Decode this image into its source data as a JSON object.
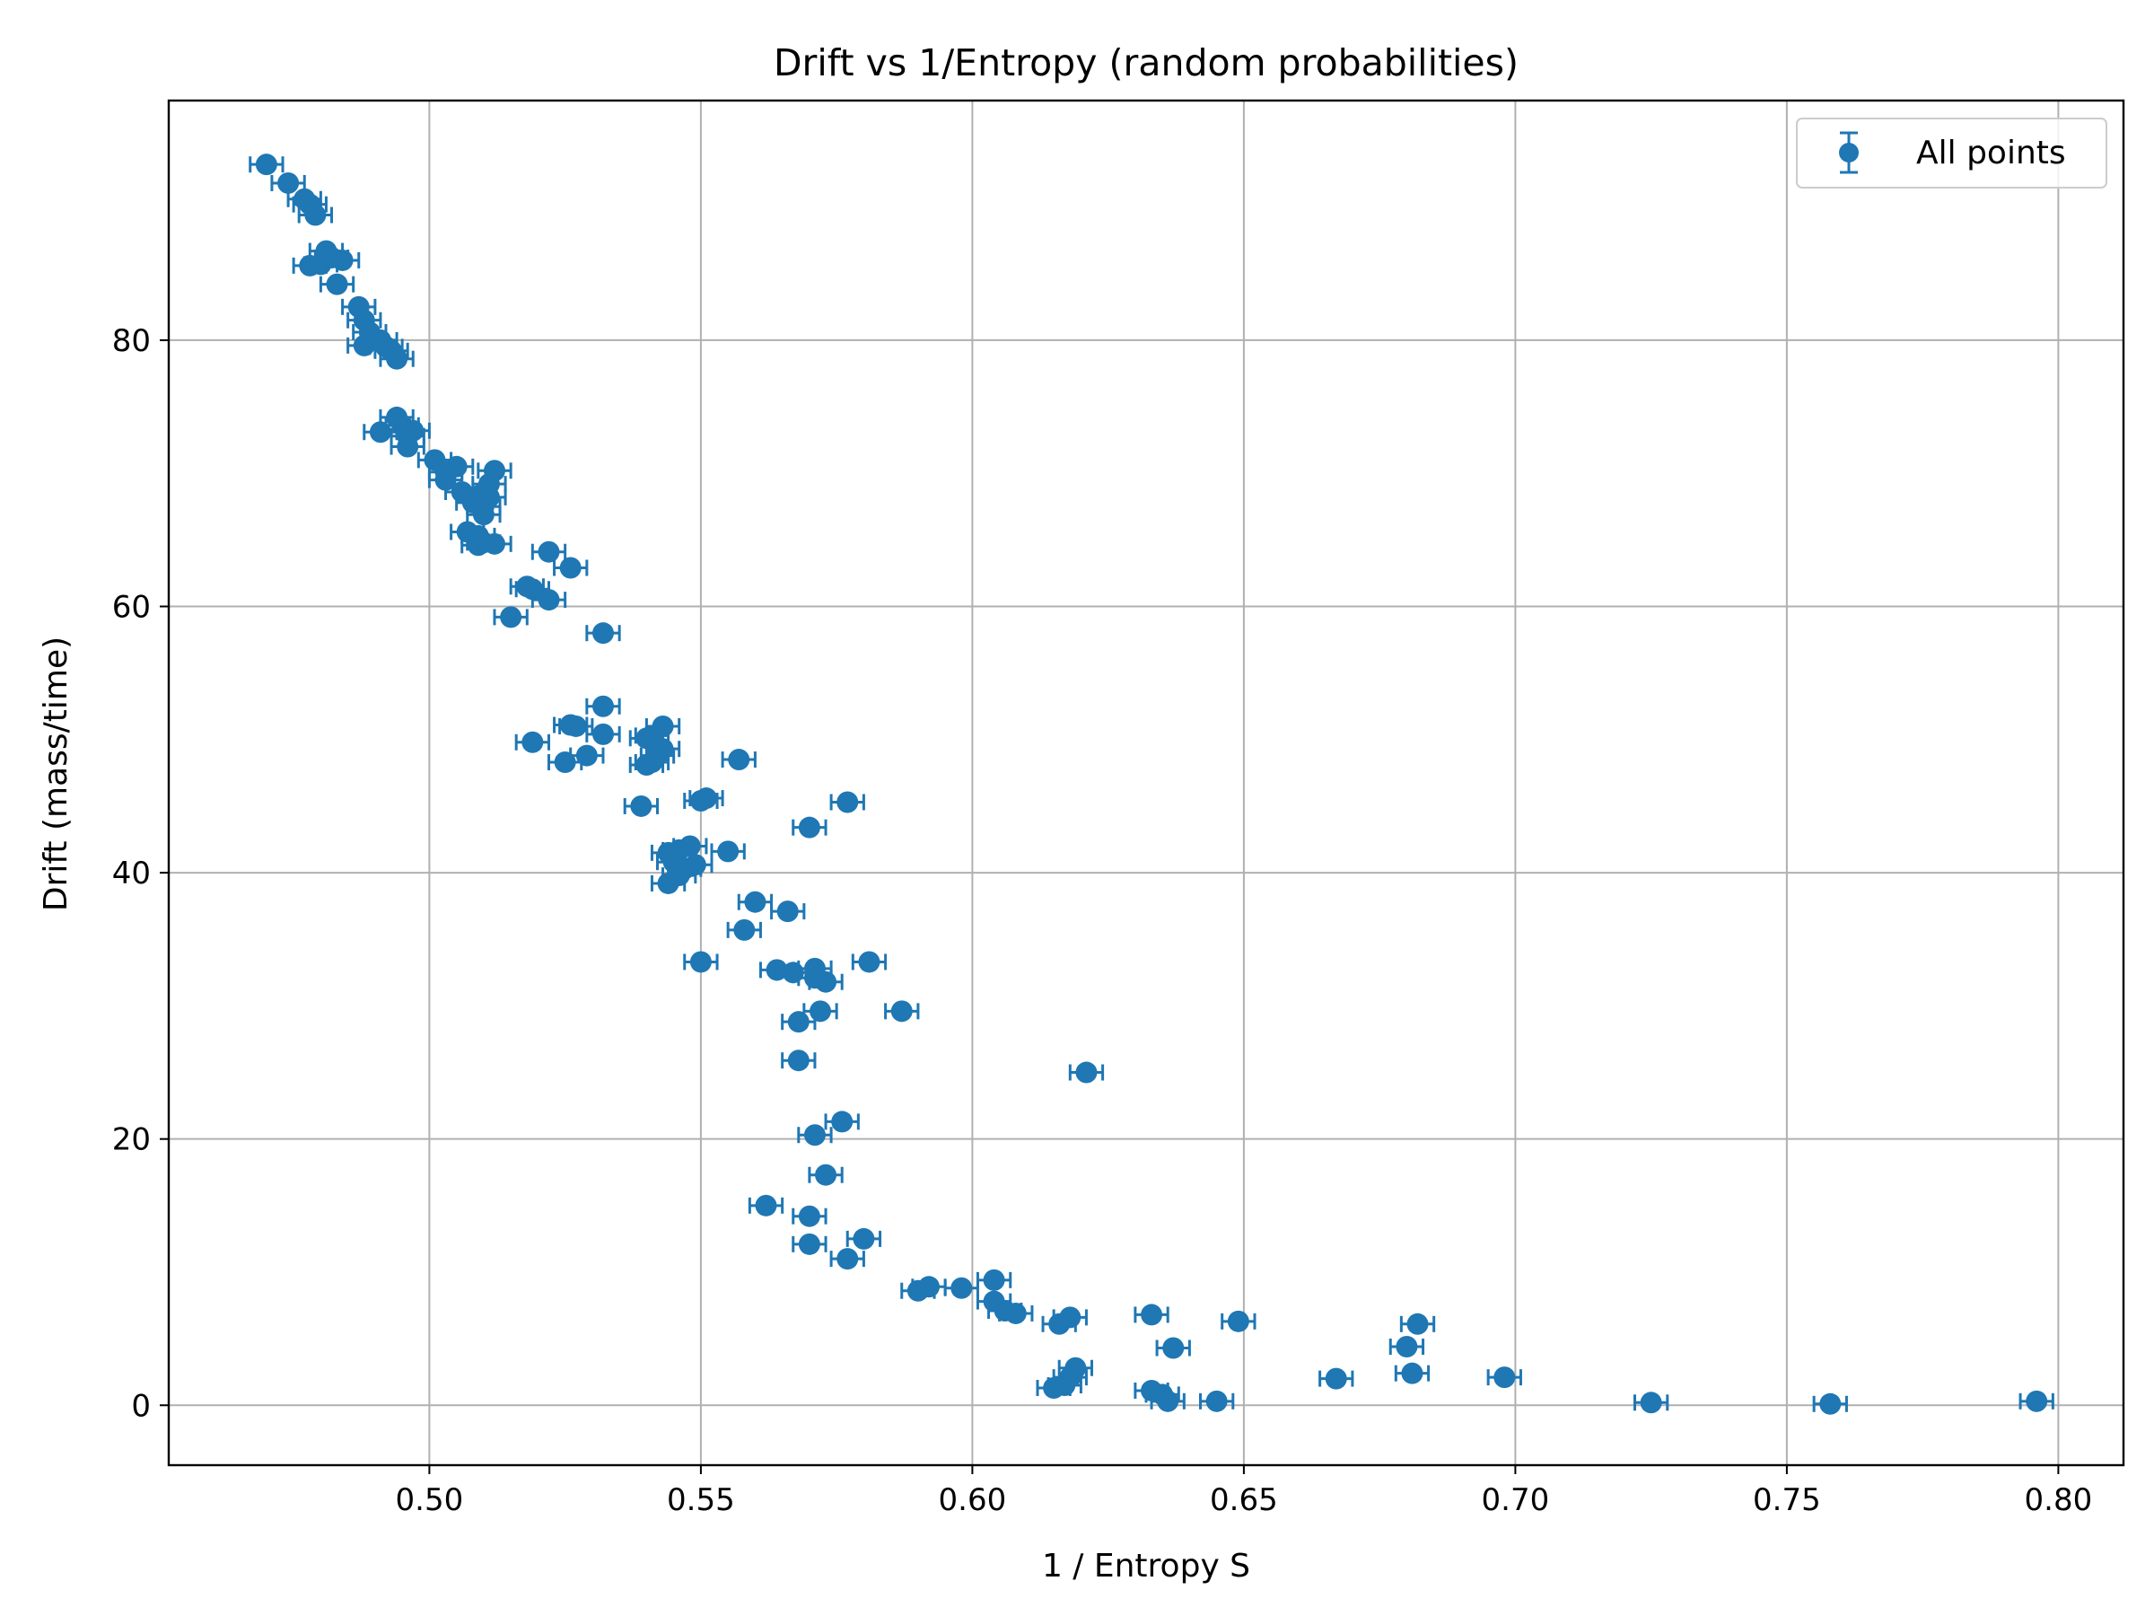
{
  "chart_data": {
    "type": "scatter",
    "title": "Drift vs 1/Entropy (random probabilities)",
    "xlabel": "1 / Entropy S",
    "ylabel": "Drift (mass/time)",
    "xlim": [
      0.452,
      0.812
    ],
    "ylim": [
      -4.5,
      98
    ],
    "xticks": [
      0.5,
      0.55,
      0.6,
      0.65,
      0.7,
      0.75,
      0.8
    ],
    "xtick_labels": [
      "0.50",
      "0.55",
      "0.60",
      "0.65",
      "0.70",
      "0.75",
      "0.80"
    ],
    "yticks": [
      0,
      20,
      40,
      60,
      80
    ],
    "ytick_labels": [
      "0",
      "20",
      "40",
      "60",
      "80"
    ],
    "grid": true,
    "legend_position": "top-right",
    "series": [
      {
        "name": "All points",
        "color": "#1f77b4",
        "marker": "circle",
        "error_bars": "horizontal",
        "x_error": 0.003,
        "points": [
          [
            0.47,
            93.2
          ],
          [
            0.474,
            91.8
          ],
          [
            0.477,
            90.6
          ],
          [
            0.478,
            90.2
          ],
          [
            0.479,
            89.4
          ],
          [
            0.478,
            85.6
          ],
          [
            0.48,
            85.7
          ],
          [
            0.481,
            86.7
          ],
          [
            0.482,
            86.2
          ],
          [
            0.484,
            86.0
          ],
          [
            0.483,
            84.2
          ],
          [
            0.487,
            82.5
          ],
          [
            0.488,
            81.5
          ],
          [
            0.489,
            80.6
          ],
          [
            0.488,
            79.6
          ],
          [
            0.491,
            80.0
          ],
          [
            0.492,
            79.5
          ],
          [
            0.493,
            79.2
          ],
          [
            0.494,
            78.6
          ],
          [
            0.491,
            73.1
          ],
          [
            0.494,
            74.2
          ],
          [
            0.495,
            73.6
          ],
          [
            0.496,
            72.8
          ],
          [
            0.497,
            73.2
          ],
          [
            0.496,
            72.0
          ],
          [
            0.501,
            71.0
          ],
          [
            0.503,
            70.1
          ],
          [
            0.505,
            70.5
          ],
          [
            0.503,
            69.5
          ],
          [
            0.506,
            68.6
          ],
          [
            0.508,
            67.8
          ],
          [
            0.509,
            68.3
          ],
          [
            0.51,
            67.5
          ],
          [
            0.511,
            68.2
          ],
          [
            0.511,
            69.2
          ],
          [
            0.512,
            70.2
          ],
          [
            0.51,
            66.9
          ],
          [
            0.507,
            65.6
          ],
          [
            0.509,
            65.3
          ],
          [
            0.509,
            64.6
          ],
          [
            0.51,
            64.8
          ],
          [
            0.512,
            64.7
          ],
          [
            0.522,
            64.1
          ],
          [
            0.526,
            62.9
          ],
          [
            0.518,
            61.5
          ],
          [
            0.519,
            61.3
          ],
          [
            0.522,
            60.5
          ],
          [
            0.515,
            59.2
          ],
          [
            0.532,
            58.0
          ],
          [
            0.519,
            49.8
          ],
          [
            0.526,
            51.1
          ],
          [
            0.527,
            51.0
          ],
          [
            0.532,
            52.5
          ],
          [
            0.532,
            50.4
          ],
          [
            0.525,
            48.3
          ],
          [
            0.529,
            48.8
          ],
          [
            0.54,
            50.1
          ],
          [
            0.541,
            50.3
          ],
          [
            0.543,
            51.0
          ],
          [
            0.54,
            48.1
          ],
          [
            0.541,
            48.3
          ],
          [
            0.542,
            48.8
          ],
          [
            0.543,
            49.3
          ],
          [
            0.539,
            45.0
          ],
          [
            0.55,
            45.4
          ],
          [
            0.551,
            45.6
          ],
          [
            0.557,
            48.5
          ],
          [
            0.577,
            45.3
          ],
          [
            0.57,
            43.4
          ],
          [
            0.544,
            41.5
          ],
          [
            0.546,
            41.7
          ],
          [
            0.548,
            42.0
          ],
          [
            0.545,
            40.8
          ],
          [
            0.547,
            40.3
          ],
          [
            0.549,
            40.6
          ],
          [
            0.544,
            39.2
          ],
          [
            0.546,
            39.8
          ],
          [
            0.555,
            41.6
          ],
          [
            0.56,
            37.8
          ],
          [
            0.566,
            37.1
          ],
          [
            0.558,
            35.7
          ],
          [
            0.55,
            33.3
          ],
          [
            0.564,
            32.7
          ],
          [
            0.567,
            32.5
          ],
          [
            0.571,
            32.8
          ],
          [
            0.571,
            32.1
          ],
          [
            0.573,
            31.8
          ],
          [
            0.581,
            33.3
          ],
          [
            0.587,
            29.6
          ],
          [
            0.568,
            28.8
          ],
          [
            0.572,
            29.6
          ],
          [
            0.568,
            25.9
          ],
          [
            0.621,
            25.0
          ],
          [
            0.576,
            21.3
          ],
          [
            0.571,
            20.3
          ],
          [
            0.573,
            17.3
          ],
          [
            0.562,
            15.0
          ],
          [
            0.57,
            14.2
          ],
          [
            0.57,
            12.1
          ],
          [
            0.58,
            12.5
          ],
          [
            0.577,
            11.0
          ],
          [
            0.59,
            8.6
          ],
          [
            0.592,
            8.9
          ],
          [
            0.598,
            8.8
          ],
          [
            0.604,
            9.4
          ],
          [
            0.604,
            7.8
          ],
          [
            0.606,
            7.1
          ],
          [
            0.608,
            6.9
          ],
          [
            0.616,
            6.1
          ],
          [
            0.618,
            6.6
          ],
          [
            0.633,
            6.8
          ],
          [
            0.637,
            4.3
          ],
          [
            0.649,
            6.3
          ],
          [
            0.619,
            2.8
          ],
          [
            0.618,
            2.1
          ],
          [
            0.617,
            1.5
          ],
          [
            0.615,
            1.3
          ],
          [
            0.633,
            1.1
          ],
          [
            0.635,
            0.8
          ],
          [
            0.636,
            0.3
          ],
          [
            0.645,
            0.3
          ],
          [
            0.667,
            2.0
          ],
          [
            0.68,
            4.4
          ],
          [
            0.682,
            6.1
          ],
          [
            0.681,
            2.4
          ],
          [
            0.698,
            2.1
          ],
          [
            0.725,
            0.2
          ],
          [
            0.758,
            0.1
          ],
          [
            0.796,
            0.3
          ]
        ]
      }
    ]
  }
}
